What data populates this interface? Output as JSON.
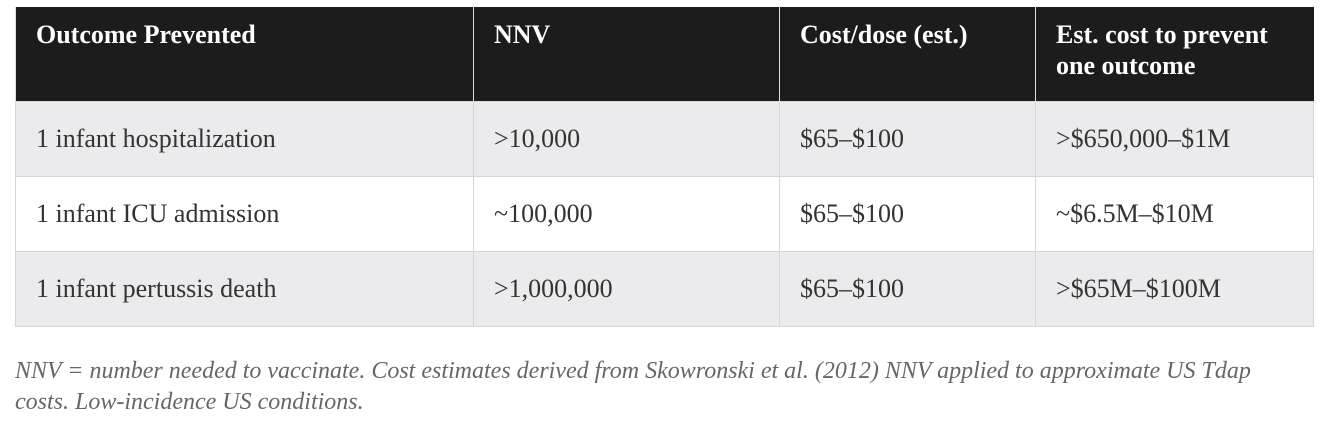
{
  "table": {
    "header": [
      "Outcome Prevented",
      "NNV",
      "Cost/dose (est.)",
      "Est. cost to prevent one outcome"
    ],
    "rows": [
      [
        "1 infant hospitalization",
        ">10,000",
        "$65–$100",
        ">$650,000–$1M"
      ],
      [
        "1 infant ICU admission",
        "~100,000",
        "$65–$100",
        "~$6.5M–$10M"
      ],
      [
        "1 infant pertussis death",
        ">1,000,000",
        "$65–$100",
        ">$65M–$100M"
      ]
    ]
  },
  "caption": "NNV = number needed to vaccinate. Cost estimates derived from Skowronski et al. (2012) NNV applied to approximate US Tdap costs. Low-incidence US conditions."
}
